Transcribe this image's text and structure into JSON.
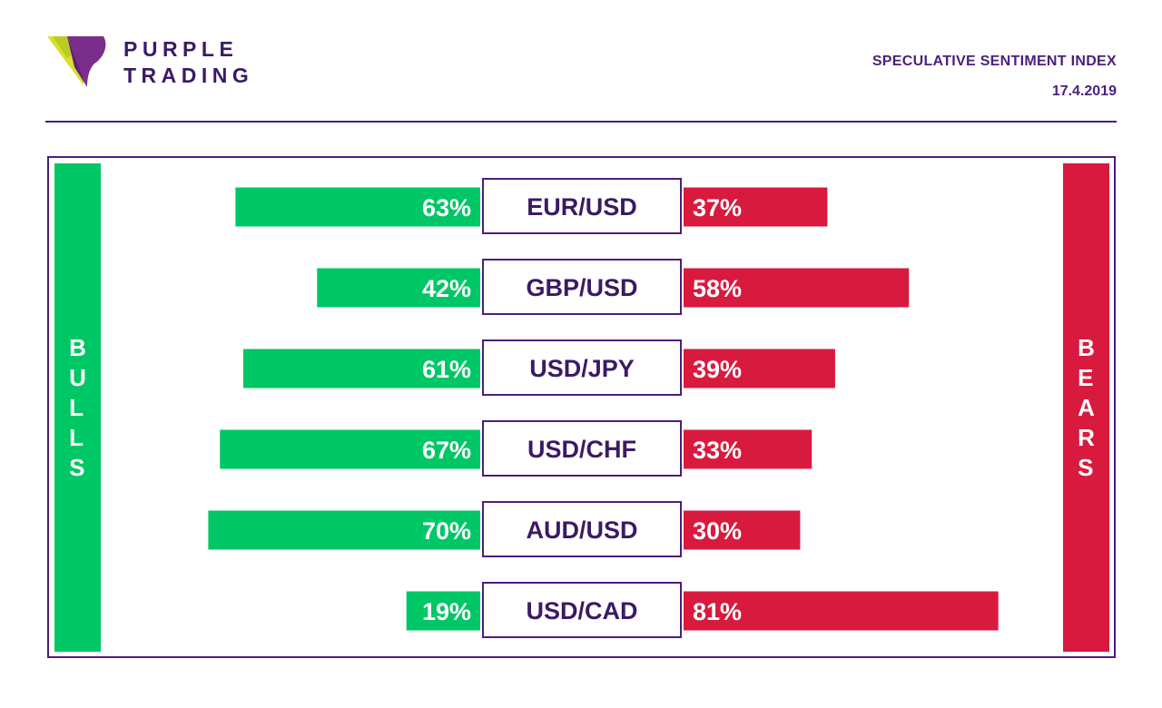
{
  "brand": {
    "line1": "PURPLE",
    "line2": "TRADING"
  },
  "header": {
    "title": "SPECULATIVE SENTIMENT INDEX",
    "date": "17.4.2019"
  },
  "sides": {
    "left": "BULLS",
    "right": "BEARS"
  },
  "colors": {
    "bulls": "#00c765",
    "bears": "#d91a3f",
    "brand_purple": "#4a1f7e",
    "logo_yellow": "#d8e02a",
    "logo_purple": "#7b2d8c"
  },
  "chart_data": {
    "type": "bar",
    "orientation": "horizontal-diverging",
    "categories": [
      "EUR/USD",
      "GBP/USD",
      "USD/JPY",
      "USD/CHF",
      "AUD/USD",
      "USD/CAD"
    ],
    "series": [
      {
        "name": "BULLS",
        "values": [
          63,
          42,
          61,
          67,
          70,
          19
        ],
        "labels": [
          "63%",
          "42%",
          "61%",
          "67%",
          "70%",
          "19%"
        ]
      },
      {
        "name": "BEARS",
        "values": [
          37,
          58,
          39,
          33,
          30,
          81
        ],
        "labels": [
          "37%",
          "58%",
          "39%",
          "33%",
          "30%",
          "81%"
        ]
      }
    ],
    "title": "SPECULATIVE SENTIMENT INDEX",
    "xlabel": "",
    "ylabel": "",
    "xlim": [
      0,
      100
    ],
    "unit": "%",
    "grid": false,
    "legend": "none"
  }
}
